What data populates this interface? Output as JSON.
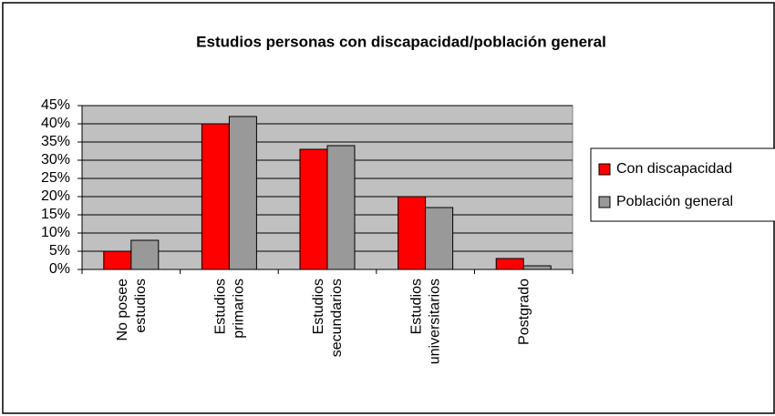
{
  "chart_data": {
    "type": "bar",
    "title": "Estudios personas con discapacidad/población general",
    "categories": [
      "No posee\nestudios",
      "Estudios\nprimarios",
      "Estudios\nsecundarios",
      "Estudios\nuniversitarios",
      "Postgrado"
    ],
    "series": [
      {
        "name": "Con discapacidad",
        "color": "#ff0000",
        "values": [
          5,
          40,
          33,
          20,
          3
        ]
      },
      {
        "name": "Población general",
        "color": "#999999",
        "values": [
          8,
          42,
          34,
          17,
          1
        ]
      }
    ],
    "ylim": [
      0,
      45
    ],
    "yticks": [
      {
        "value": 0,
        "label": "0%"
      },
      {
        "value": 5,
        "label": "5%"
      },
      {
        "value": 10,
        "label": "10%"
      },
      {
        "value": 15,
        "label": "15%"
      },
      {
        "value": 20,
        "label": "20%"
      },
      {
        "value": 25,
        "label": "25%"
      },
      {
        "value": 30,
        "label": "30%"
      },
      {
        "value": 35,
        "label": "35%"
      },
      {
        "value": 40,
        "label": "40%"
      },
      {
        "value": 45,
        "label": "45%"
      }
    ],
    "grid": true,
    "legend": "right",
    "plot_background": "#c0c0c0"
  }
}
